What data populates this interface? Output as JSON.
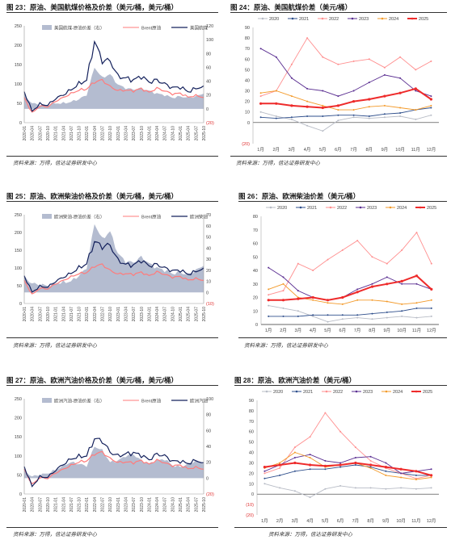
{
  "colors": {
    "area": "#b4bcd0",
    "brent": "#ff7b7b",
    "product": "#14215c",
    "y2020": "#b8bcc6",
    "y2021": "#2f4f8c",
    "y2022": "#ff8f8f",
    "y2023": "#5a2e91",
    "y2024": "#f39a2a",
    "y2025": "#ee2b2b",
    "neg": "#e03030"
  },
  "source_label": "资料来源：万得，信达证券研发中心",
  "months": [
    "1月",
    "2月",
    "3月",
    "4月",
    "5月",
    "6月",
    "7月",
    "8月",
    "9月",
    "10月",
    "11月",
    "12月"
  ],
  "dates": [
    "2020-01",
    "2020-04",
    "2020-07",
    "2020-10",
    "2021-01",
    "2021-04",
    "2021-07",
    "2021-10",
    "2022-01",
    "2022-04",
    "2022-07",
    "2022-10",
    "2023-01",
    "2023-04",
    "2023-07",
    "2023-10",
    "2024-01",
    "2024-04",
    "2024-07",
    "2024-10",
    "2025-01",
    "2025-04",
    "2025-07",
    "2025-10"
  ],
  "panels": [
    {
      "title": "图 23：原油、美国航煤价格及价差（美元/桶，美元/桶）",
      "chart_data": {
        "type": "line",
        "x": [
          "2020-01",
          "2020-04",
          "2020-07",
          "2020-10",
          "2021-01",
          "2021-04",
          "2021-07",
          "2021-10",
          "2022-01",
          "2022-04",
          "2022-07",
          "2022-10",
          "2023-01",
          "2023-04",
          "2023-07",
          "2023-10",
          "2024-01",
          "2024-04",
          "2024-07",
          "2024-10",
          "2025-01",
          "2025-04",
          "2025-07",
          "2025-10"
        ],
        "series": [
          {
            "name": "美国航煤-原油价差（右）",
            "axis": "right",
            "values": [
              20,
              8,
              6,
              5,
              8,
              8,
              10,
              14,
              20,
              60,
              45,
              50,
              35,
              30,
              28,
              30,
              26,
              22,
              20,
              16,
              18,
              16,
              18,
              22
            ]
          },
          {
            "name": "Brent原油",
            "axis": "left",
            "values": [
              65,
              25,
              43,
              41,
              55,
              65,
              75,
              84,
              87,
              105,
              110,
              93,
              83,
              84,
              82,
              88,
              78,
              89,
              82,
              74,
              76,
              66,
              70,
              65
            ]
          },
          {
            "name": "美国航煤",
            "axis": "left",
            "values": [
              80,
              30,
              48,
              45,
              62,
              72,
              85,
              100,
              110,
              210,
              160,
              160,
              120,
              115,
              110,
              120,
              105,
              110,
              100,
              90,
              92,
              80,
              88,
              95
            ]
          }
        ],
        "yleft": {
          "ticks": [
            0,
            50,
            100,
            150,
            200,
            250
          ],
          "ylim": [
            0,
            250
          ]
        },
        "yright": {
          "ticks": [
            "(20)",
            0,
            20,
            40,
            60,
            80,
            100,
            120
          ],
          "ylim": [
            -20,
            120
          ]
        }
      }
    },
    {
      "title": "图 24：原油、美国航煤价差（美元/桶）",
      "chart_data": {
        "type": "line",
        "categories": [
          "1月",
          "2月",
          "3月",
          "4月",
          "5月",
          "6月",
          "7月",
          "8月",
          "9月",
          "10月",
          "11月",
          "12月"
        ],
        "yticks": [
          "(20)",
          0,
          10,
          20,
          30,
          40,
          50,
          60,
          70,
          80,
          90
        ],
        "ylim": [
          -20,
          90
        ],
        "series": [
          {
            "name": "2020",
            "values": [
              10,
              6,
              3,
              -3,
              -8,
              2,
              5,
              4,
              5,
              6,
              3,
              7
            ]
          },
          {
            "name": "2021",
            "values": [
              5,
              4,
              5,
              6,
              6,
              7,
              7,
              6,
              8,
              9,
              12,
              14
            ]
          },
          {
            "name": "2022",
            "values": [
              25,
              30,
              55,
              80,
              62,
              55,
              58,
              60,
              52,
              62,
              50,
              58
            ]
          },
          {
            "name": "2023",
            "values": [
              70,
              62,
              42,
              32,
              30,
              25,
              30,
              38,
              45,
              42,
              30,
              25
            ]
          },
          {
            "name": "2024",
            "values": [
              28,
              30,
              25,
              20,
              16,
              12,
              12,
              15,
              16,
              14,
              12,
              16
            ]
          },
          {
            "name": "2025",
            "values": [
              18,
              18,
              16,
              15,
              14,
              16,
              20,
              22,
              25,
              28,
              32,
              22
            ]
          }
        ]
      }
    },
    {
      "title": "图 25：原油、欧洲柴油价格及价差（美元/桶，美元/桶）",
      "chart_data": {
        "type": "line",
        "x": [
          "2020-01",
          "2020-04",
          "2020-07",
          "2020-10",
          "2021-01",
          "2021-04",
          "2021-07",
          "2021-10",
          "2022-01",
          "2022-04",
          "2022-07",
          "2022-10",
          "2023-01",
          "2023-04",
          "2023-07",
          "2023-10",
          "2024-01",
          "2024-04",
          "2024-07",
          "2024-10",
          "2025-01",
          "2025-04",
          "2025-07",
          "2025-10"
        ],
        "series": [
          {
            "name": "欧洲柴油-原油价差（右）",
            "axis": "right",
            "values": [
              14,
              8,
              7,
              6,
              8,
              9,
              10,
              15,
              22,
              62,
              48,
              55,
              35,
              28,
              27,
              32,
              26,
              22,
              20,
              17,
              18,
              16,
              20,
              24
            ]
          },
          {
            "name": "Brent原油",
            "axis": "left",
            "values": [
              65,
              25,
              43,
              41,
              55,
              65,
              75,
              84,
              87,
              105,
              110,
              93,
              83,
              84,
              82,
              88,
              78,
              89,
              82,
              74,
              76,
              66,
              70,
              65
            ]
          },
          {
            "name": "欧洲柴油",
            "axis": "left",
            "values": [
              78,
              32,
              48,
              46,
              62,
              74,
              85,
              100,
              112,
              175,
              160,
              165,
              122,
              110,
              108,
              122,
              106,
              110,
              100,
              92,
              94,
              82,
              90,
              100
            ]
          }
        ],
        "yleft": {
          "ticks": [
            0,
            50,
            100,
            150,
            200,
            250
          ],
          "ylim": [
            0,
            250
          ]
        },
        "yright": {
          "ticks": [
            "(10)",
            0,
            10,
            20,
            30,
            40,
            50,
            60,
            70
          ],
          "ylim": [
            -10,
            70
          ]
        }
      }
    },
    {
      "title": "图 26：原油、欧洲柴油价差（美元/桶）",
      "chart_data": {
        "type": "line",
        "categories": [
          "1月",
          "2月",
          "3月",
          "4月",
          "5月",
          "6月",
          "7月",
          "8月",
          "9月",
          "10月",
          "11月",
          "12月"
        ],
        "yticks": [
          0,
          10,
          20,
          30,
          40,
          50,
          60,
          70,
          80
        ],
        "ylim": [
          0,
          80
        ],
        "series": [
          {
            "name": "2020",
            "values": [
              14,
              12,
              10,
              6,
              2,
              4,
              5,
              4,
              5,
              6,
              5,
              6
            ]
          },
          {
            "name": "2021",
            "values": [
              6,
              6,
              6,
              7,
              7,
              7,
              7,
              8,
              9,
              10,
              12,
              12
            ]
          },
          {
            "name": "2022",
            "values": [
              22,
              25,
              45,
              40,
              48,
              55,
              62,
              50,
              45,
              55,
              68,
              45
            ]
          },
          {
            "name": "2023",
            "values": [
              42,
              35,
              25,
              20,
              18,
              20,
              26,
              30,
              35,
              30,
              30,
              26
            ]
          },
          {
            "name": "2024",
            "values": [
              26,
              30,
              20,
              18,
              16,
              15,
              18,
              18,
              17,
              15,
              16,
              18
            ]
          },
          {
            "name": "2025",
            "values": [
              18,
              18,
              19,
              20,
              18,
              20,
              24,
              28,
              30,
              32,
              36,
              26
            ]
          }
        ]
      }
    },
    {
      "title": "图 27：原油、欧洲汽油价格及价差（美元/桶，美元/桶）",
      "chart_data": {
        "type": "line",
        "x": [
          "2020-01",
          "2020-04",
          "2020-07",
          "2020-10",
          "2021-01",
          "2021-04",
          "2021-07",
          "2021-10",
          "2022-01",
          "2022-04",
          "2022-07",
          "2022-10",
          "2023-01",
          "2023-04",
          "2023-07",
          "2023-10",
          "2024-01",
          "2024-04",
          "2024-07",
          "2024-10",
          "2025-01",
          "2025-04",
          "2025-07",
          "2025-10"
        ],
        "series": [
          {
            "name": "欧洲汽油-原油价差（右）",
            "axis": "right",
            "values": [
              10,
              2,
              4,
              6,
              10,
              16,
              20,
              18,
              15,
              40,
              35,
              20,
              22,
              28,
              30,
              22,
              18,
              22,
              24,
              16,
              14,
              18,
              22,
              18
            ]
          },
          {
            "name": "Brent原油",
            "axis": "left",
            "values": [
              65,
              25,
              43,
              41,
              55,
              65,
              75,
              84,
              87,
              105,
              110,
              93,
              83,
              84,
              82,
              88,
              78,
              89,
              82,
              74,
              76,
              66,
              70,
              65
            ]
          },
          {
            "name": "欧洲汽油",
            "axis": "left",
            "values": [
              72,
              20,
              45,
              44,
              62,
              78,
              92,
              98,
              100,
              145,
              140,
              110,
              100,
              105,
              108,
              102,
              90,
              105,
              100,
              86,
              86,
              80,
              88,
              82
            ]
          }
        ],
        "yleft": {
          "ticks": [
            0,
            50,
            100,
            150,
            200,
            250
          ],
          "ylim": [
            0,
            250
          ]
        },
        "yright": {
          "ticks": [
            "(20)",
            0,
            20,
            40,
            60,
            80,
            100
          ],
          "ylim": [
            -20,
            100
          ]
        }
      }
    },
    {
      "title": "图 28：原油、欧洲汽油价差（美元/桶）",
      "chart_data": {
        "type": "line",
        "categories": [
          "1月",
          "2月",
          "3月",
          "4月",
          "5月",
          "6月",
          "7月",
          "8月",
          "9月",
          "10月",
          "11月",
          "12月"
        ],
        "yticks": [
          "(20)",
          "(10)",
          0,
          10,
          20,
          30,
          40,
          50,
          60,
          70,
          80,
          90
        ],
        "ylim": [
          -20,
          90
        ],
        "series": [
          {
            "name": "2020",
            "values": [
              10,
              6,
              3,
              -3,
              5,
              8,
              6,
              6,
              5,
              6,
              5,
              6
            ]
          },
          {
            "name": "2021",
            "values": [
              15,
              18,
              22,
              24,
              24,
              26,
              28,
              26,
              22,
              20,
              18,
              18
            ]
          },
          {
            "name": "2022",
            "values": [
              20,
              25,
              45,
              55,
              78,
              60,
              45,
              32,
              25,
              20,
              15,
              18
            ]
          },
          {
            "name": "2023",
            "values": [
              22,
              28,
              35,
              38,
              32,
              30,
              35,
              36,
              30,
              20,
              22,
              24
            ]
          },
          {
            "name": "2024",
            "values": [
              25,
              30,
              40,
              35,
              26,
              28,
              30,
              25,
              18,
              16,
              14,
              16
            ]
          },
          {
            "name": "2025",
            "values": [
              26,
              28,
              30,
              28,
              27,
              28,
              30,
              28,
              26,
              24,
              22,
              18
            ]
          }
        ]
      }
    }
  ]
}
